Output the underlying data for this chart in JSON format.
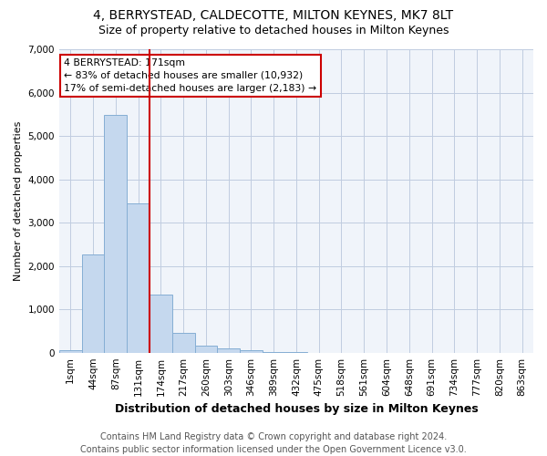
{
  "title": "4, BERRYSTEAD, CALDECOTTE, MILTON KEYNES, MK7 8LT",
  "subtitle": "Size of property relative to detached houses in Milton Keynes",
  "xlabel": "Distribution of detached houses by size in Milton Keynes",
  "ylabel": "Number of detached properties",
  "bar_labels": [
    "1sqm",
    "44sqm",
    "87sqm",
    "131sqm",
    "174sqm",
    "217sqm",
    "260sqm",
    "303sqm",
    "346sqm",
    "389sqm",
    "432sqm",
    "475sqm",
    "518sqm",
    "561sqm",
    "604sqm",
    "648sqm",
    "691sqm",
    "734sqm",
    "777sqm",
    "820sqm",
    "863sqm"
  ],
  "bar_values": [
    60,
    2270,
    5480,
    3450,
    1350,
    450,
    170,
    95,
    60,
    10,
    5,
    2,
    0,
    0,
    0,
    0,
    0,
    0,
    0,
    0,
    0
  ],
  "bar_color": "#c5d8ee",
  "bar_edgecolor": "#85aed4",
  "vline_index": 4,
  "annotation_text": "4 BERRYSTEAD: 171sqm\n← 83% of detached houses are smaller (10,932)\n17% of semi-detached houses are larger (2,183) →",
  "annotation_box_facecolor": "#ffffff",
  "annotation_box_edgecolor": "#cc0000",
  "vline_color": "#cc0000",
  "ylim": [
    0,
    7000
  ],
  "yticks": [
    0,
    1000,
    2000,
    3000,
    4000,
    5000,
    6000,
    7000
  ],
  "footer": "Contains HM Land Registry data © Crown copyright and database right 2024.\nContains public sector information licensed under the Open Government Licence v3.0.",
  "title_fontsize": 10,
  "subtitle_fontsize": 9,
  "xlabel_fontsize": 9,
  "ylabel_fontsize": 8,
  "footer_fontsize": 7,
  "tick_fontsize": 7.5,
  "bg_color": "#ffffff",
  "plot_bg_color": "#f0f4fa",
  "grid_color": "#c0cce0"
}
